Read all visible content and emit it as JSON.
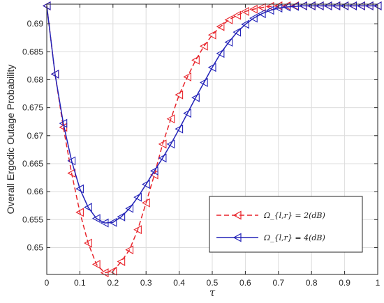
{
  "chart_data": {
    "type": "line",
    "xlabel": "τ",
    "ylabel": "Overall Ergodic Outage Probability",
    "xlim": [
      0,
      1
    ],
    "ylim": [
      0.6452,
      0.6935
    ],
    "x_ticks": [
      "0",
      "0.1",
      "0.2",
      "0.3",
      "0.4",
      "0.5",
      "0.6",
      "0.7",
      "0.8",
      "0.9",
      "1"
    ],
    "y_ticks": [
      "0.65",
      "0.655",
      "0.66",
      "0.665",
      "0.67",
      "0.675",
      "0.68",
      "0.685",
      "0.69"
    ],
    "grid": true,
    "legend_position": "lower-right",
    "series": [
      {
        "name": "Ω_{l,r} = 2(dB)",
        "color": "#e8242b",
        "line_style": "dashed",
        "marker": "left-triangle",
        "x": [
          0,
          0.025,
          0.05,
          0.075,
          0.1,
          0.125,
          0.15,
          0.175,
          0.2,
          0.225,
          0.25,
          0.275,
          0.3,
          0.325,
          0.35,
          0.375,
          0.4,
          0.425,
          0.45,
          0.475,
          0.5,
          0.525,
          0.55,
          0.575,
          0.6,
          0.625,
          0.65,
          0.675,
          0.7,
          0.725,
          0.75,
          0.775,
          0.8,
          0.825,
          0.85,
          0.875,
          0.9,
          0.925,
          0.95,
          0.975,
          1
        ],
        "y": [
          0.6932,
          0.681,
          0.6715,
          0.6633,
          0.6563,
          0.6508,
          0.647,
          0.6455,
          0.6458,
          0.6475,
          0.6496,
          0.6532,
          0.658,
          0.663,
          0.6685,
          0.673,
          0.6773,
          0.6805,
          0.6835,
          0.686,
          0.688,
          0.6895,
          0.6907,
          0.6915,
          0.6922,
          0.6926,
          0.6929,
          0.6931,
          0.6932,
          0.6932,
          0.6932,
          0.6932,
          0.6932,
          0.6932,
          0.6932,
          0.6932,
          0.6932,
          0.6932,
          0.6932,
          0.6932,
          0.6932
        ]
      },
      {
        "name": "Ω_{l,r} = 4(dB)",
        "color": "#2323b8",
        "line_style": "solid",
        "marker": "left-triangle",
        "x": [
          0,
          0.025,
          0.05,
          0.075,
          0.1,
          0.125,
          0.15,
          0.175,
          0.2,
          0.225,
          0.25,
          0.275,
          0.3,
          0.325,
          0.35,
          0.375,
          0.4,
          0.425,
          0.45,
          0.475,
          0.5,
          0.525,
          0.55,
          0.575,
          0.6,
          0.625,
          0.65,
          0.675,
          0.7,
          0.725,
          0.75,
          0.775,
          0.8,
          0.825,
          0.85,
          0.875,
          0.9,
          0.925,
          0.95,
          0.975,
          1
        ],
        "y": [
          0.6932,
          0.681,
          0.6722,
          0.6655,
          0.6605,
          0.6572,
          0.6552,
          0.6544,
          0.6545,
          0.6555,
          0.657,
          0.659,
          0.6613,
          0.6637,
          0.666,
          0.6685,
          0.6712,
          0.674,
          0.6768,
          0.6795,
          0.6822,
          0.6847,
          0.6867,
          0.6885,
          0.6899,
          0.691,
          0.6918,
          0.6924,
          0.6928,
          0.693,
          0.6931,
          0.6932,
          0.6932,
          0.6932,
          0.6932,
          0.6932,
          0.6932,
          0.6932,
          0.6932,
          0.6932,
          0.6932
        ]
      }
    ]
  }
}
